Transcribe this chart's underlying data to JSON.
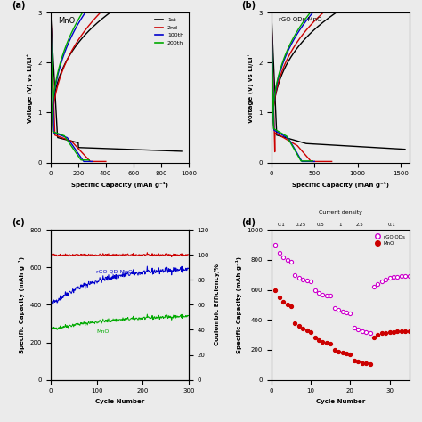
{
  "panel_a": {
    "title": "MnO",
    "xlabel": "Specific Capacity (mAh g⁻¹)",
    "ylabel": "Voltage (V) vs Li/Li⁺",
    "xlim": [
      0,
      1000
    ],
    "ylim": [
      0,
      3.0
    ],
    "label": "(a)"
  },
  "panel_b": {
    "title": "rGO QDs-MnO",
    "xlabel": "Specific Capacity (mAh g⁻¹)",
    "ylabel": "Voltage (V) vs Li/Li⁺",
    "xlim": [
      0,
      1600
    ],
    "ylim": [
      0,
      3.0
    ],
    "label": "(b)"
  },
  "panel_c": {
    "xlabel": "Cycle Number",
    "ylabel_left": "Specific Capacity (mAh g⁻¹)",
    "ylabel_right": "Coulombic Efficiency/%",
    "xlim": [
      0,
      300
    ],
    "ylim_left": [
      0,
      800
    ],
    "ylim_right": [
      0,
      120
    ],
    "label": "(c)"
  },
  "panel_d": {
    "xlabel": "Cycle Number",
    "ylabel": "Specific Capacity (mAh g⁻¹)",
    "xlim": [
      0,
      35
    ],
    "ylim": [
      0,
      1000
    ],
    "label": "(d)",
    "current_densities": [
      "0.1",
      "0.25",
      "0.5",
      "1",
      "2.5",
      "0.1"
    ],
    "cd_positions": [
      2.5,
      7.5,
      12.5,
      17.5,
      22.5,
      30.5
    ]
  },
  "bg_color": "#ebebeb",
  "legend_labels": [
    "1st",
    "2nd",
    "100th",
    "200th"
  ],
  "legend_colors": [
    "#000000",
    "#cc0000",
    "#0000cc",
    "#00aa00"
  ]
}
